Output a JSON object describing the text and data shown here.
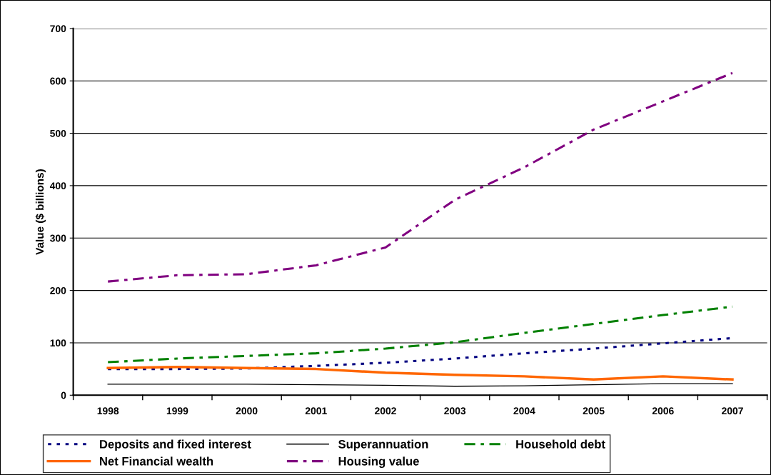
{
  "chart_data": {
    "type": "line",
    "ylabel": "Value ($ billions)",
    "categories": [
      "1998",
      "1999",
      "2000",
      "2001",
      "2002",
      "2003",
      "2004",
      "2005",
      "2006",
      "2007"
    ],
    "series": [
      {
        "name": "Deposits and fixed interest",
        "color": "#000080",
        "line_style": "dotted",
        "values": [
          50,
          50,
          51,
          56,
          62,
          70,
          80,
          89,
          99,
          109
        ]
      },
      {
        "name": "Superannuation",
        "color": "#000000",
        "line_style": "solid",
        "values": [
          21,
          21,
          21,
          20,
          19,
          17,
          18,
          20,
          22,
          22
        ]
      },
      {
        "name": "Household debt",
        "color": "#008000",
        "line_style": "dashdot",
        "values": [
          63,
          70,
          75,
          80,
          89,
          101,
          119,
          136,
          153,
          169
        ]
      },
      {
        "name": "Net Financial wealth",
        "color": "#ff6600",
        "line_style": "solid",
        "values": [
          52,
          54,
          52,
          50,
          43,
          39,
          36,
          30,
          36,
          30
        ]
      },
      {
        "name": "Housing value",
        "color": "#800080",
        "line_style": "dashdot",
        "values": [
          217,
          229,
          231,
          248,
          282,
          373,
          435,
          507,
          561,
          615
        ]
      }
    ],
    "ylim": [
      0,
      700
    ],
    "yticks": [
      0,
      100,
      200,
      300,
      400,
      500,
      600,
      700
    ],
    "grid": "y",
    "legend": "bottom",
    "marker": "none"
  }
}
